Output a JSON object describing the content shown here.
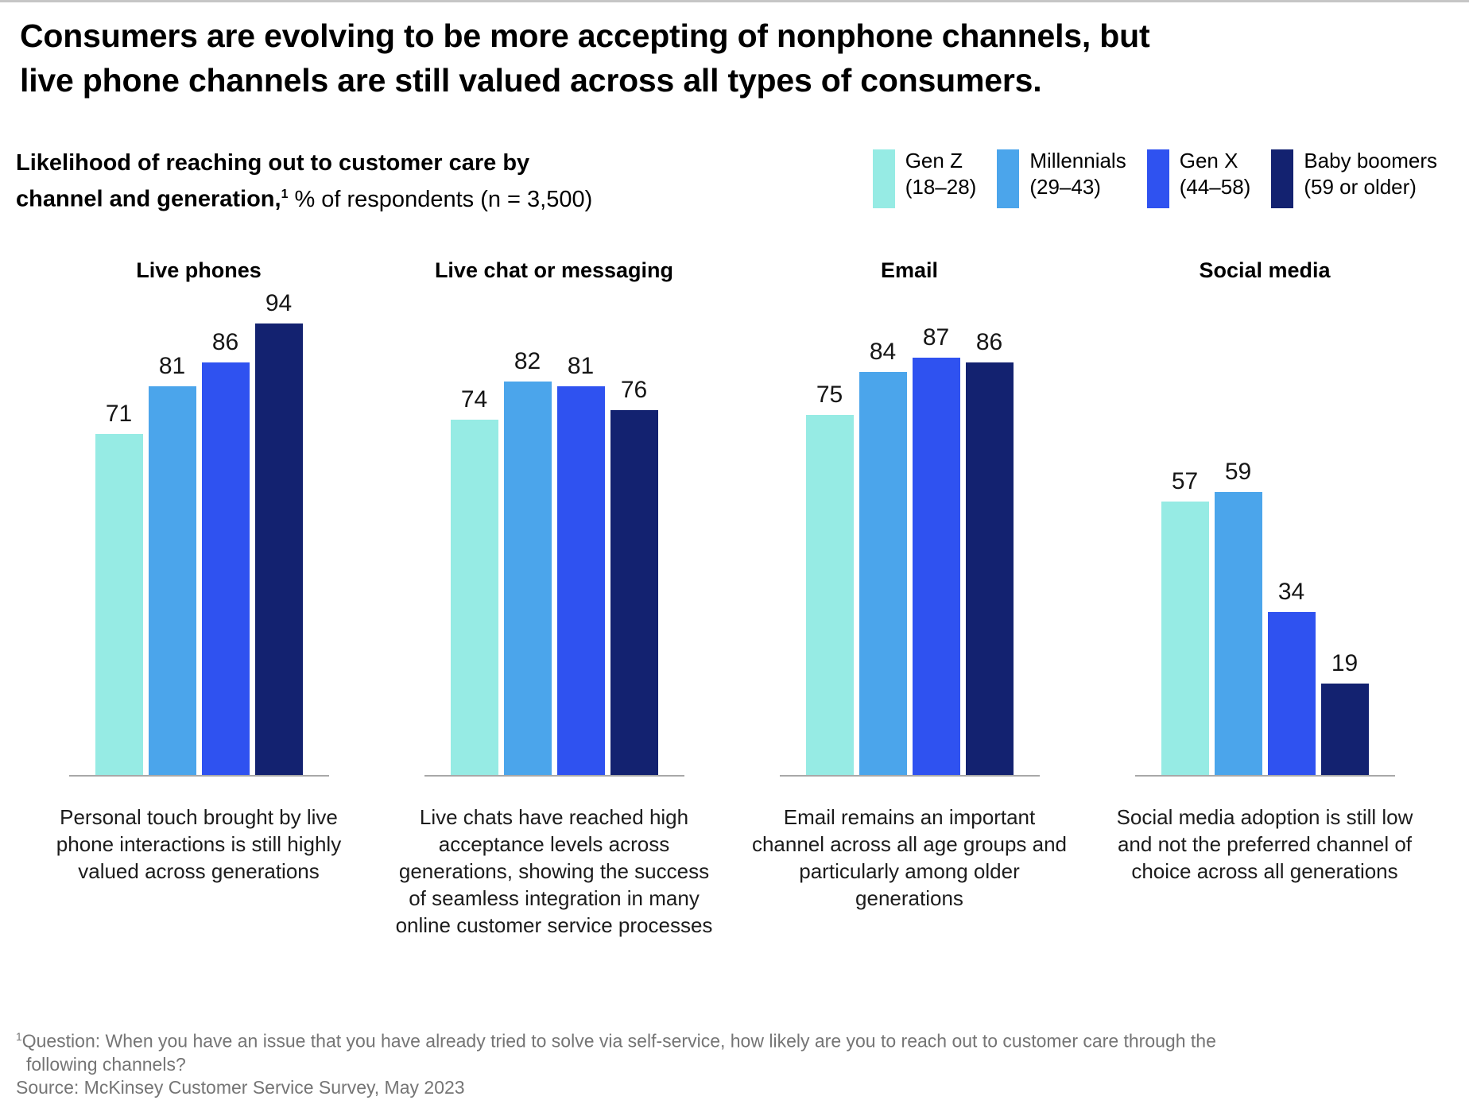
{
  "page": {
    "title_line1": "Consumers are evolving to be more accepting of nonphone channels, but",
    "title_line2": "live phone channels are still valued across all types of consumers.",
    "subtitle_bold_line1": "Likelihood of reaching out to customer care by",
    "subtitle_bold_line2": "channel and generation,",
    "subtitle_footnote_marker": "1",
    "subtitle_regular": "% of respondents (n = 3,500)"
  },
  "legend": [
    {
      "line1": "Gen Z",
      "line2": "(18–28)",
      "color": "#96EBE4"
    },
    {
      "line1": "Millennials",
      "line2": "(29–43)",
      "color": "#4BA5EB"
    },
    {
      "line1": "Gen X",
      "line2": "(44–58)",
      "color": "#2F52F0"
    },
    {
      "line1": "Baby boomers",
      "line2": "(59 or older)",
      "color": "#132270"
    }
  ],
  "chart_data": {
    "type": "bar",
    "title": "Likelihood of reaching out to customer care by channel and generation, % of respondents (n = 3,500)",
    "categories": [
      "Gen Z (18–28)",
      "Millennials (29–43)",
      "Gen X (44–58)",
      "Baby boomers (59 or older)"
    ],
    "ylim": [
      0,
      100
    ],
    "grid": false,
    "legend_position": "top-right",
    "value_labels": true,
    "groups": [
      {
        "title": "Live phones",
        "values": [
          71,
          81,
          86,
          94
        ],
        "caption": "Personal touch brought by live phone interactions is still highly valued across generations"
      },
      {
        "title": "Live chat or messaging",
        "values": [
          74,
          82,
          81,
          76
        ],
        "caption": "Live chats have reached high acceptance levels across generations, showing the success of seamless integration in many online customer service processes"
      },
      {
        "title": "Email",
        "values": [
          75,
          84,
          87,
          86
        ],
        "caption": "Email remains an important channel across all age groups and particularly among older generations"
      },
      {
        "title": "Social media",
        "values": [
          57,
          59,
          34,
          19
        ],
        "caption": "Social media adoption is still low and not the preferred channel of choice across all generations"
      }
    ]
  },
  "footnote": {
    "marker": "1",
    "line1": "Question: When you have an issue that you have already tried to solve via self-service, how likely are you to reach out to customer care through the",
    "line2": "following channels?",
    "source": "Source: McKinsey Customer Service Survey, May 2023"
  }
}
